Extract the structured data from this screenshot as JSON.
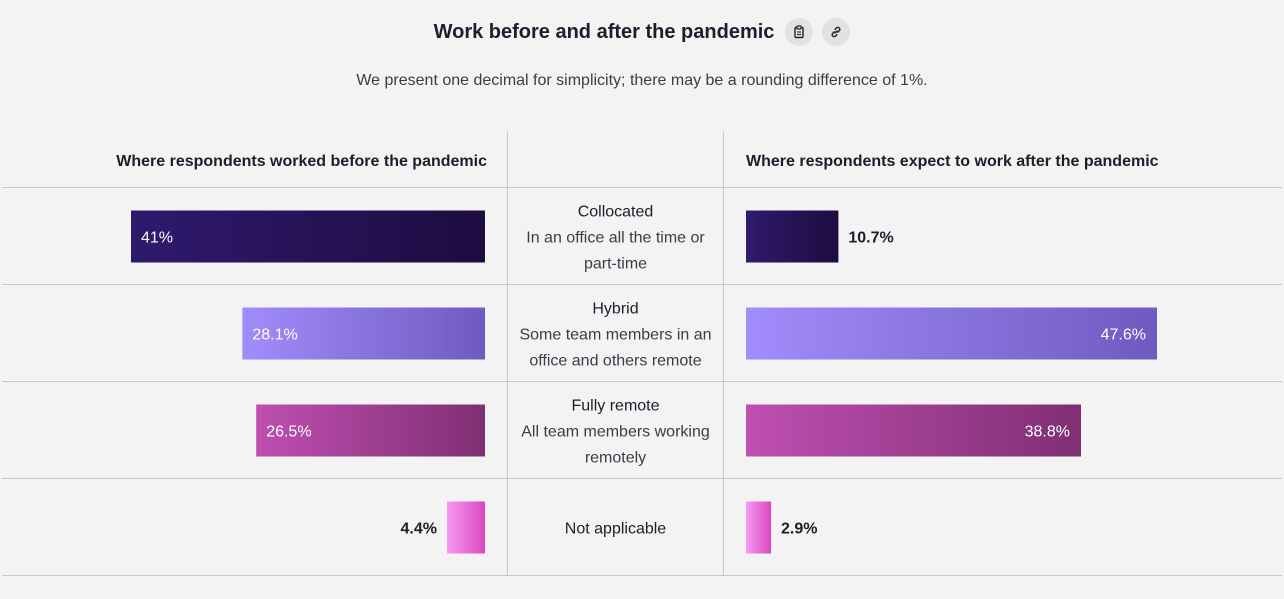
{
  "header": {
    "title": "Work before and after the pandemic",
    "subtitle": "We present one decimal for simplicity; there may be a rounding difference of 1%.",
    "icons": [
      "clipboard-icon",
      "link-icon"
    ]
  },
  "chart_data": {
    "type": "bar",
    "orientation": "horizontal-butterfly",
    "left_header": "Where respondents worked before the pandemic",
    "right_header": "Where respondents expect to work after the pandemic",
    "categories": [
      {
        "name": "Collocated",
        "description": [
          "In an office all the time or",
          "part-time"
        ]
      },
      {
        "name": "Hybrid",
        "description": [
          "Some team members in an",
          "office and others remote"
        ]
      },
      {
        "name": "Fully remote",
        "description": [
          "All team members working",
          "remotely"
        ]
      },
      {
        "name": "Not applicable",
        "description": []
      }
    ],
    "series": [
      {
        "side": "left",
        "values": [
          41,
          28.1,
          26.5,
          4.4
        ],
        "labels": [
          "41%",
          "28.1%",
          "26.5%",
          "4.4%"
        ]
      },
      {
        "side": "right",
        "values": [
          10.7,
          47.6,
          38.8,
          2.9
        ],
        "labels": [
          "10.7%",
          "47.6%",
          "38.8%",
          "2.9%"
        ]
      }
    ],
    "colors": [
      [
        "#2f1a6e",
        "#1d0c40"
      ],
      [
        "#a18cfb",
        "#6f5bbf"
      ],
      [
        "#bf4fb1",
        "#7f2f73"
      ],
      [
        "#f79af0",
        "#d848bf"
      ]
    ]
  }
}
